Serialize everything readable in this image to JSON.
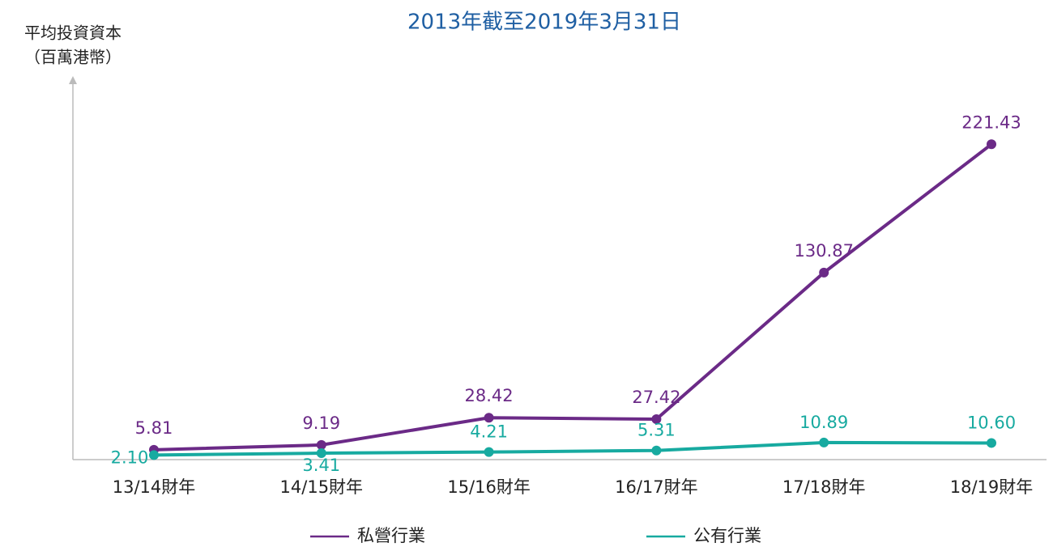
{
  "chart_data": {
    "type": "line",
    "title": "2013年截至2019年3月31日",
    "y_label": [
      "平均投資資本",
      "（百萬港幣）"
    ],
    "categories": [
      "13/14財年",
      "14/15財年",
      "15/16財年",
      "16/17財年",
      "17/18財年",
      "18/19財年"
    ],
    "series": [
      {
        "name": "私營行業",
        "color": "#6b2a87",
        "values": [
          5.81,
          9.19,
          28.42,
          27.42,
          130.87,
          221.43
        ],
        "value_labels": [
          "5.81",
          "9.19",
          "28.42",
          "27.42",
          "130.87",
          "221.43"
        ]
      },
      {
        "name": "公有行業",
        "color": "#17aaa0",
        "values": [
          2.1,
          3.41,
          4.21,
          5.31,
          10.89,
          10.6
        ],
        "value_labels": [
          "2.10",
          "3.41",
          "4.21",
          "5.31",
          "10.89",
          "10.60"
        ]
      }
    ],
    "ylim": [
      0,
      269
    ],
    "title_color": "#1f5fa3"
  }
}
